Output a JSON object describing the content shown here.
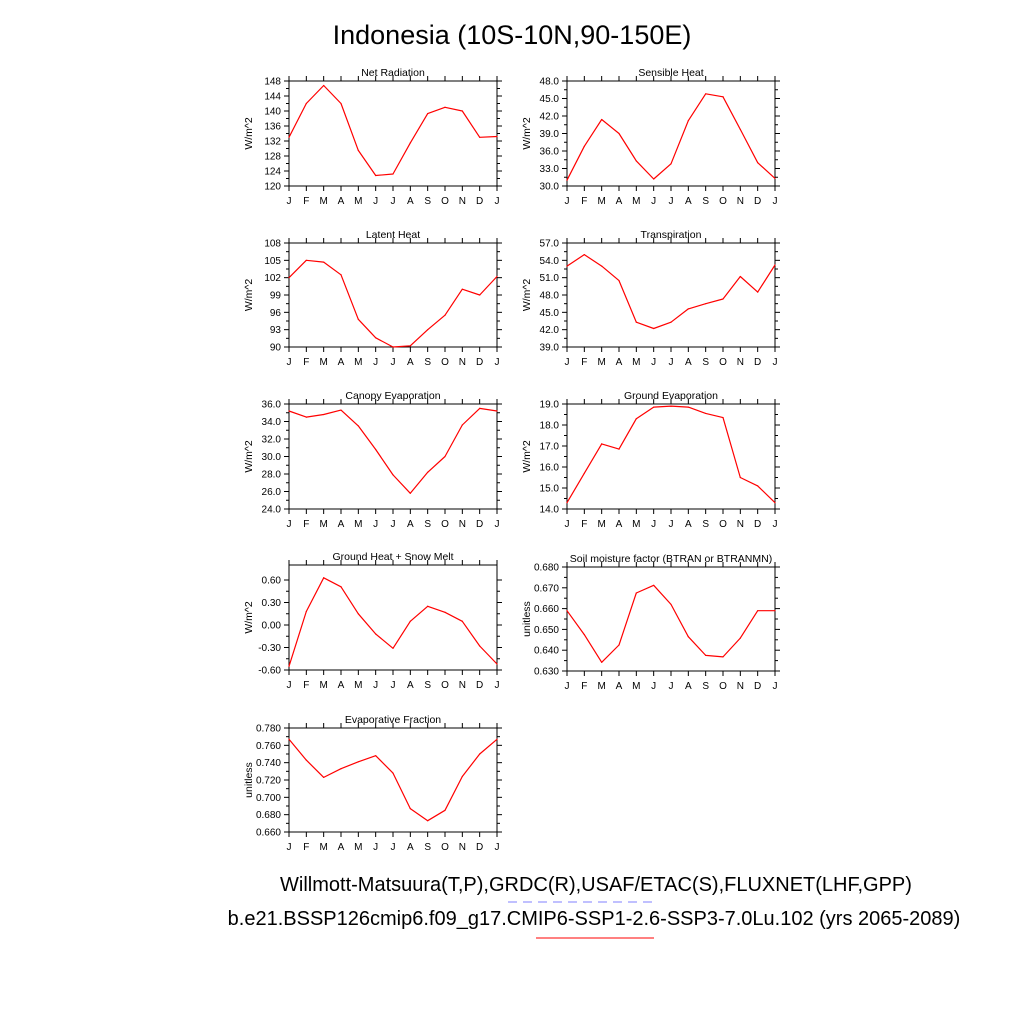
{
  "figure": {
    "title": "Indonesia (10S-10N,90-150E)",
    "footer_line1": "Willmott-Matsuura(T,P),GRDC(R),USAF/ETAC(S),FLUXNET(LHF,GPP)",
    "footer_line2": "b.e21.BSSP126cmip6.f09_g17.CMIP6-SSP1-2.6-SSP3-7.0Lu.102 (yrs 2065-2089)"
  },
  "colors": {
    "model_line": "#ff0000",
    "obs_line": "#8080ff",
    "axis": "#000000"
  },
  "chart_data": [
    {
      "type": "line",
      "title": "Net Radiation",
      "ylabel": "W/m^2",
      "x": [
        "J",
        "F",
        "M",
        "A",
        "M",
        "J",
        "J",
        "A",
        "S",
        "O",
        "N",
        "D",
        "J"
      ],
      "ylim": [
        120,
        148
      ],
      "yticks": [
        120,
        124,
        128,
        132,
        136,
        140,
        144,
        148
      ],
      "ytick_labels": [
        "120",
        "124",
        "128",
        "132",
        "136",
        "140",
        "144",
        "148"
      ],
      "series": [
        {
          "values": [
            133.0,
            142.0,
            146.8,
            142.0,
            129.5,
            122.8,
            123.2,
            131.5,
            139.3,
            141.0,
            140.0,
            133.0,
            133.2
          ]
        }
      ]
    },
    {
      "type": "line",
      "title": "Sensible Heat",
      "ylabel": "W/m^2",
      "x": [
        "J",
        "F",
        "M",
        "A",
        "M",
        "J",
        "J",
        "A",
        "S",
        "O",
        "N",
        "D",
        "J"
      ],
      "ylim": [
        30,
        48
      ],
      "yticks": [
        30,
        33,
        36,
        39,
        42,
        45,
        48
      ],
      "ytick_labels": [
        "30.0",
        "33.0",
        "36.0",
        "39.0",
        "42.0",
        "45.0",
        "48.0"
      ],
      "series": [
        {
          "values": [
            31.0,
            36.8,
            41.4,
            39.0,
            34.3,
            31.2,
            33.8,
            41.2,
            45.8,
            45.3,
            39.7,
            34.0,
            31.3
          ]
        }
      ]
    },
    {
      "type": "line",
      "title": "Latent Heat",
      "ylabel": "W/m^2",
      "x": [
        "J",
        "F",
        "M",
        "A",
        "M",
        "J",
        "J",
        "A",
        "S",
        "O",
        "N",
        "D",
        "J"
      ],
      "ylim": [
        90,
        108
      ],
      "yticks": [
        90,
        93,
        96,
        99,
        102,
        105,
        108
      ],
      "ytick_labels": [
        "90",
        "93",
        "96",
        "99",
        "102",
        "105",
        "108"
      ],
      "series": [
        {
          "values": [
            102.0,
            105.0,
            104.7,
            102.5,
            94.8,
            91.6,
            90.0,
            90.2,
            93.0,
            95.5,
            100.0,
            99.0,
            102.2
          ]
        }
      ]
    },
    {
      "type": "line",
      "title": "Transpiration",
      "ylabel": "W/m^2",
      "x": [
        "J",
        "F",
        "M",
        "A",
        "M",
        "J",
        "J",
        "A",
        "S",
        "O",
        "N",
        "D",
        "J"
      ],
      "ylim": [
        39,
        57
      ],
      "yticks": [
        39,
        42,
        45,
        48,
        51,
        54,
        57
      ],
      "ytick_labels": [
        "39.0",
        "42.0",
        "45.0",
        "48.0",
        "51.0",
        "54.0",
        "57.0"
      ],
      "series": [
        {
          "values": [
            53.0,
            55.0,
            53.0,
            50.5,
            43.3,
            42.2,
            43.3,
            45.6,
            46.5,
            47.3,
            51.2,
            48.5,
            53.2
          ]
        }
      ]
    },
    {
      "type": "line",
      "title": "Canopy Evaporation",
      "ylabel": "W/m^2",
      "x": [
        "J",
        "F",
        "M",
        "A",
        "M",
        "J",
        "J",
        "A",
        "S",
        "O",
        "N",
        "D",
        "J"
      ],
      "ylim": [
        24,
        36
      ],
      "yticks": [
        24,
        26,
        28,
        30,
        32,
        34,
        36
      ],
      "ytick_labels": [
        "24.0",
        "26.0",
        "28.0",
        "30.0",
        "32.0",
        "34.0",
        "36.0"
      ],
      "series": [
        {
          "values": [
            35.2,
            34.5,
            34.8,
            35.3,
            33.5,
            30.8,
            27.9,
            25.8,
            28.2,
            30.0,
            33.6,
            35.5,
            35.2
          ]
        }
      ]
    },
    {
      "type": "line",
      "title": "Ground Evaporation",
      "ylabel": "W/m^2",
      "x": [
        "J",
        "F",
        "M",
        "A",
        "M",
        "J",
        "J",
        "A",
        "S",
        "O",
        "N",
        "D",
        "J"
      ],
      "ylim": [
        14,
        19
      ],
      "yticks": [
        14,
        15,
        16,
        17,
        18,
        19
      ],
      "ytick_labels": [
        "14.0",
        "15.0",
        "16.0",
        "17.0",
        "18.0",
        "19.0"
      ],
      "series": [
        {
          "values": [
            14.3,
            15.7,
            17.1,
            16.85,
            18.3,
            18.85,
            18.9,
            18.85,
            18.55,
            18.35,
            15.5,
            15.1,
            14.3
          ]
        }
      ]
    },
    {
      "type": "line",
      "title": "Ground Heat + Snow Melt",
      "ylabel": "W/m^2",
      "x": [
        "J",
        "F",
        "M",
        "A",
        "M",
        "J",
        "J",
        "A",
        "S",
        "O",
        "N",
        "D",
        "J"
      ],
      "ylim": [
        -0.6,
        0.8
      ],
      "yticks": [
        -0.6,
        -0.3,
        0,
        0.3,
        0.6
      ],
      "ytick_labels": [
        "-0.60",
        "-0.30",
        "0.00",
        "0.30",
        "0.60"
      ],
      "series": [
        {
          "values": [
            -0.55,
            0.18,
            0.63,
            0.51,
            0.15,
            -0.12,
            -0.31,
            0.05,
            0.25,
            0.17,
            0.05,
            -0.28,
            -0.52
          ]
        }
      ]
    },
    {
      "type": "line",
      "title": "Soil moisture factor (BTRAN or BTRANMN)",
      "ylabel": "unitless",
      "x": [
        "J",
        "F",
        "M",
        "A",
        "M",
        "J",
        "J",
        "A",
        "S",
        "O",
        "N",
        "D",
        "J"
      ],
      "ylim": [
        0.63,
        0.68
      ],
      "yticks": [
        0.63,
        0.64,
        0.65,
        0.66,
        0.67,
        0.68
      ],
      "ytick_labels": [
        "0.630",
        "0.640",
        "0.650",
        "0.660",
        "0.670",
        "0.680"
      ],
      "series": [
        {
          "values": [
            0.659,
            0.6475,
            0.6342,
            0.6425,
            0.6675,
            0.6712,
            0.662,
            0.6465,
            0.6375,
            0.6368,
            0.6458,
            0.659,
            0.659
          ]
        }
      ]
    },
    {
      "type": "line",
      "title": "Evaporative Fraction",
      "ylabel": "unitless",
      "x": [
        "J",
        "F",
        "M",
        "A",
        "M",
        "J",
        "J",
        "A",
        "S",
        "O",
        "N",
        "D",
        "J"
      ],
      "ylim": [
        0.66,
        0.78
      ],
      "yticks": [
        0.66,
        0.68,
        0.7,
        0.72,
        0.74,
        0.76,
        0.78
      ],
      "ytick_labels": [
        "0.660",
        "0.680",
        "0.700",
        "0.720",
        "0.740",
        "0.760",
        "0.780"
      ],
      "series": [
        {
          "values": [
            0.767,
            0.743,
            0.723,
            0.733,
            0.741,
            0.748,
            0.728,
            0.687,
            0.673,
            0.685,
            0.724,
            0.75,
            0.767
          ]
        }
      ]
    }
  ]
}
